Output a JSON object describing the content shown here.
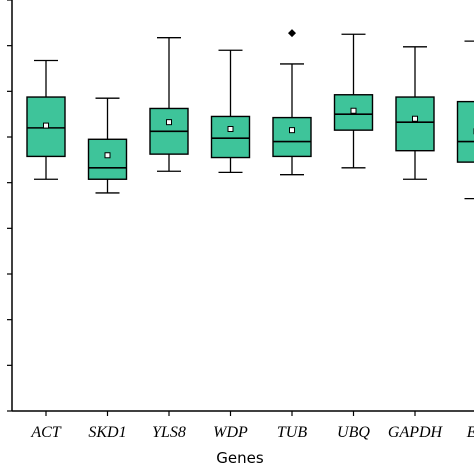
{
  "chart_data": {
    "type": "box",
    "xlabel": "Genes",
    "ylabel": "",
    "ylim": [
      0,
      36
    ],
    "box_color": "#3ec49a",
    "outlier_symbol": "diamond",
    "mean_marker": "hollow-square",
    "categories": [
      "ACT",
      "SKD1",
      "YLS8",
      "WDP",
      "TUB",
      "UBQ",
      "GAPDH",
      "EF"
    ],
    "boxes": [
      {
        "label": "ACT",
        "whisker_low": 20.3,
        "q1": 22.3,
        "median": 24.8,
        "q3": 27.5,
        "whisker_high": 30.7,
        "mean": 25.0,
        "outliers": []
      },
      {
        "label": "SKD1",
        "whisker_low": 19.1,
        "q1": 20.3,
        "median": 21.3,
        "q3": 23.8,
        "whisker_high": 27.4,
        "mean": 22.4,
        "outliers": []
      },
      {
        "label": "YLS8",
        "whisker_low": 21.0,
        "q1": 22.5,
        "median": 24.5,
        "q3": 26.5,
        "whisker_high": 32.7,
        "mean": 25.3,
        "outliers": []
      },
      {
        "label": "WDP",
        "whisker_low": 20.9,
        "q1": 22.2,
        "median": 23.9,
        "q3": 25.8,
        "whisker_high": 31.6,
        "mean": 24.7,
        "outliers": []
      },
      {
        "label": "TUB",
        "whisker_low": 20.7,
        "q1": 22.3,
        "median": 23.6,
        "q3": 25.7,
        "whisker_high": 30.4,
        "mean": 24.6,
        "outliers": [
          33.1
        ]
      },
      {
        "label": "UBQ",
        "whisker_low": 21.3,
        "q1": 24.6,
        "median": 26.0,
        "q3": 27.7,
        "whisker_high": 33.0,
        "mean": 26.3,
        "outliers": []
      },
      {
        "label": "GAPDH",
        "whisker_low": 20.3,
        "q1": 22.8,
        "median": 25.3,
        "q3": 27.5,
        "whisker_high": 31.9,
        "mean": 25.6,
        "outliers": []
      },
      {
        "label": "EF",
        "whisker_low": 18.6,
        "q1": 21.8,
        "median": 23.6,
        "q3": 27.1,
        "whisker_high": 32.4,
        "mean": 24.5,
        "outliers": []
      }
    ]
  }
}
